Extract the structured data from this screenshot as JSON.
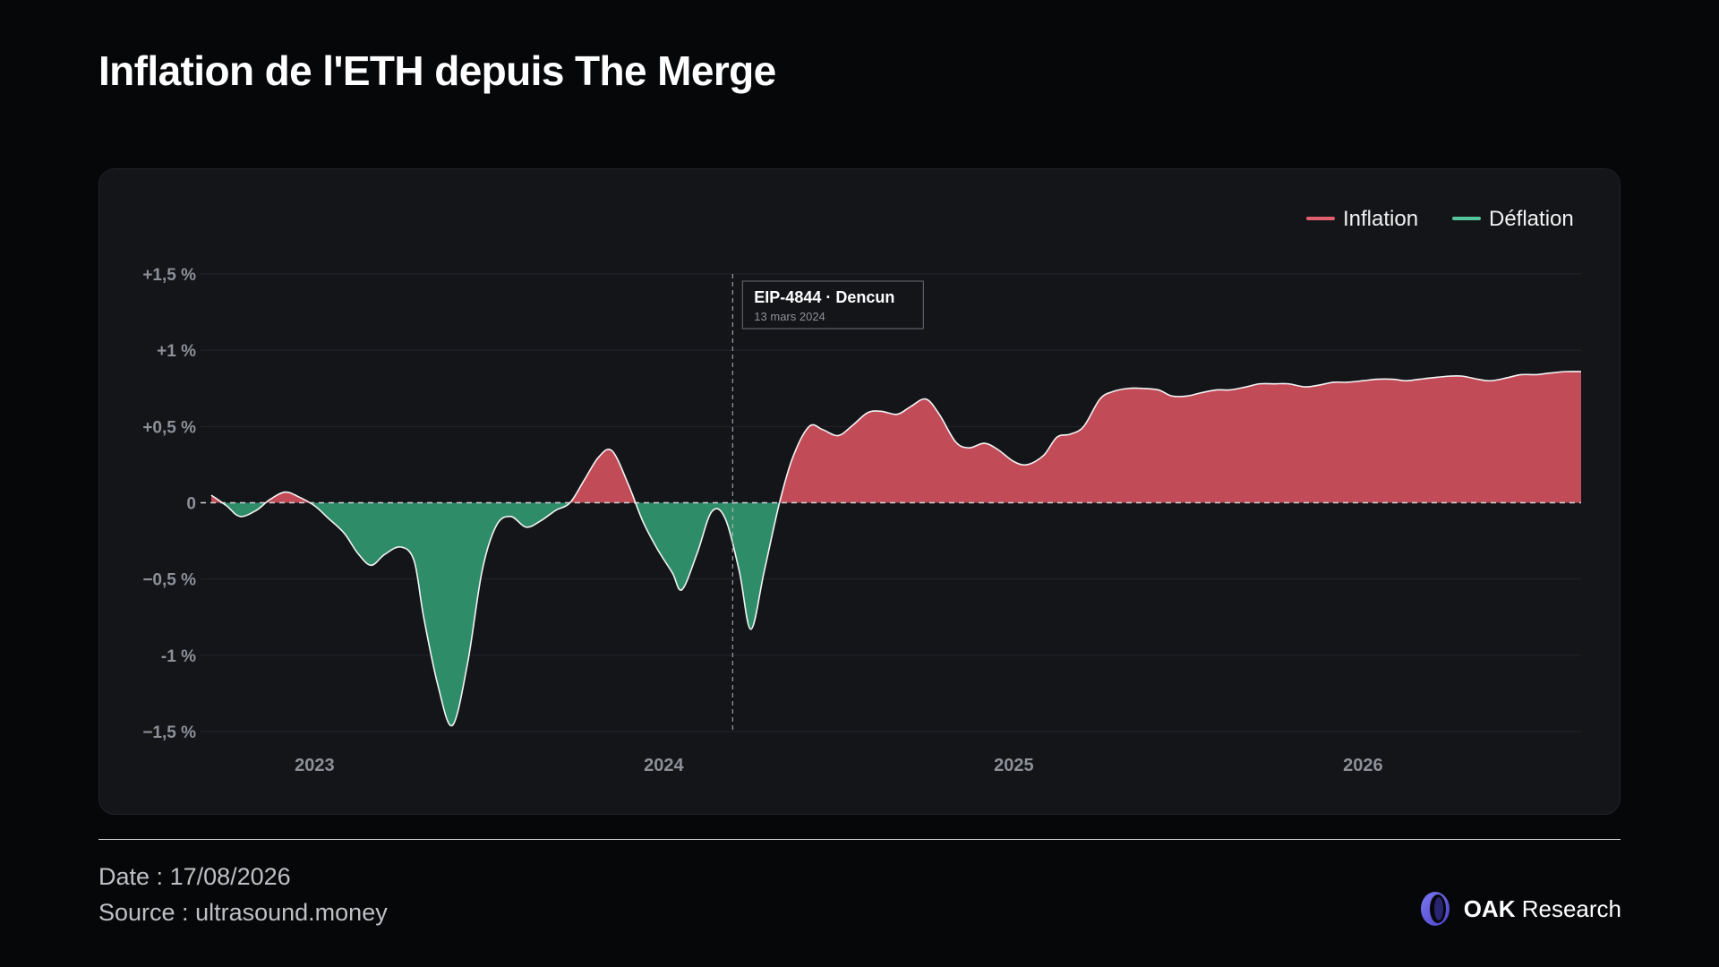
{
  "page": {
    "title": "Inflation de l'ETH depuis The Merge",
    "footer": {
      "date_label": "Date :",
      "date_value": "17/08/2026",
      "source_label": "Source :",
      "source_value": "ultrasound.money"
    },
    "brand": {
      "bold": "OAK",
      "light": "Research"
    }
  },
  "colors": {
    "inflation": "#e0606e",
    "deflation": "#55c49a",
    "inflation_area": "#c24b58",
    "deflation_area": "#2e8c69"
  },
  "chart_data": {
    "type": "area",
    "title": "Inflation de l'ETH depuis The Merge",
    "legend": {
      "placement": "top-right",
      "entries": [
        "Inflation",
        "Déflation"
      ]
    },
    "series": [
      {
        "name": "Inflation",
        "color": "#e0606e",
        "sign": "positive"
      },
      {
        "name": "Déflation",
        "color": "#55c49a",
        "sign": "negative"
      }
    ],
    "y_ticks": [
      {
        "value": 1.5,
        "label": "+1,5 %"
      },
      {
        "value": 1,
        "label": "+1 %"
      },
      {
        "value": 0.5,
        "label": "+0,5 %"
      },
      {
        "value": 0,
        "label": "0"
      },
      {
        "value": -0.5,
        "label": "−0,5 %"
      },
      {
        "value": -1,
        "label": "-1 %"
      },
      {
        "value": -1.5,
        "label": "−1,5 %"
      }
    ],
    "x_ticks": [
      {
        "value": "2023-01-01",
        "label": "2023"
      },
      {
        "value": "2024-01-01",
        "label": "2024"
      },
      {
        "value": "2025-01-01",
        "label": "2025"
      },
      {
        "value": "2026-01-01",
        "label": "2026"
      }
    ],
    "ylim": [
      -1.5,
      1.5
    ],
    "xlim": [
      "2022-09-15",
      "2026-08-17"
    ],
    "grid": true,
    "zero_line": "dashed",
    "annotation": {
      "date": "2024-03-13",
      "title": "EIP-4844 · Dencun",
      "subtitle": "13 mars 2024"
    },
    "points": [
      [
        "2022-09-15",
        0.05
      ],
      [
        "2022-10-01",
        -0.02
      ],
      [
        "2022-10-15",
        -0.09
      ],
      [
        "2022-11-01",
        -0.05
      ],
      [
        "2022-11-15",
        0.02
      ],
      [
        "2022-12-01",
        0.07
      ],
      [
        "2022-12-15",
        0.04
      ],
      [
        "2023-01-01",
        -0.02
      ],
      [
        "2023-01-15",
        -0.1
      ],
      [
        "2023-02-01",
        -0.2
      ],
      [
        "2023-02-15",
        -0.33
      ],
      [
        "2023-03-01",
        -0.41
      ],
      [
        "2023-03-15",
        -0.34
      ],
      [
        "2023-04-01",
        -0.29
      ],
      [
        "2023-04-15",
        -0.38
      ],
      [
        "2023-04-25",
        -0.75
      ],
      [
        "2023-05-10",
        -1.2
      ],
      [
        "2023-05-25",
        -1.46
      ],
      [
        "2023-06-10",
        -1.05
      ],
      [
        "2023-06-25",
        -0.45
      ],
      [
        "2023-07-10",
        -0.15
      ],
      [
        "2023-07-25",
        -0.09
      ],
      [
        "2023-08-10",
        -0.16
      ],
      [
        "2023-08-25",
        -0.12
      ],
      [
        "2023-09-10",
        -0.05
      ],
      [
        "2023-09-25",
        0.0
      ],
      [
        "2023-10-10",
        0.15
      ],
      [
        "2023-10-25",
        0.3
      ],
      [
        "2023-11-08",
        0.34
      ],
      [
        "2023-11-25",
        0.12
      ],
      [
        "2023-12-10",
        -0.12
      ],
      [
        "2023-12-25",
        -0.3
      ],
      [
        "2024-01-10",
        -0.46
      ],
      [
        "2024-01-20",
        -0.57
      ],
      [
        "2024-02-05",
        -0.33
      ],
      [
        "2024-02-20",
        -0.06
      ],
      [
        "2024-03-05",
        -0.1
      ],
      [
        "2024-03-20",
        -0.45
      ],
      [
        "2024-04-01",
        -0.83
      ],
      [
        "2024-04-15",
        -0.45
      ],
      [
        "2024-05-01",
        0.0
      ],
      [
        "2024-05-15",
        0.3
      ],
      [
        "2024-06-01",
        0.5
      ],
      [
        "2024-06-15",
        0.48
      ],
      [
        "2024-07-01",
        0.44
      ],
      [
        "2024-07-15",
        0.5
      ],
      [
        "2024-08-01",
        0.59
      ],
      [
        "2024-08-15",
        0.6
      ],
      [
        "2024-09-01",
        0.58
      ],
      [
        "2024-09-15",
        0.63
      ],
      [
        "2024-10-01",
        0.68
      ],
      [
        "2024-10-15",
        0.58
      ],
      [
        "2024-11-01",
        0.4
      ],
      [
        "2024-11-15",
        0.36
      ],
      [
        "2024-12-01",
        0.39
      ],
      [
        "2024-12-15",
        0.35
      ],
      [
        "2025-01-01",
        0.27
      ],
      [
        "2025-01-15",
        0.25
      ],
      [
        "2025-02-01",
        0.31
      ],
      [
        "2025-02-15",
        0.43
      ],
      [
        "2025-03-01",
        0.45
      ],
      [
        "2025-03-15",
        0.5
      ],
      [
        "2025-04-01",
        0.68
      ],
      [
        "2025-04-15",
        0.73
      ],
      [
        "2025-05-01",
        0.75
      ],
      [
        "2025-05-15",
        0.75
      ],
      [
        "2025-06-01",
        0.74
      ],
      [
        "2025-06-15",
        0.7
      ],
      [
        "2025-07-01",
        0.7
      ],
      [
        "2025-07-15",
        0.72
      ],
      [
        "2025-08-01",
        0.74
      ],
      [
        "2025-08-15",
        0.74
      ],
      [
        "2025-09-01",
        0.76
      ],
      [
        "2025-09-15",
        0.78
      ],
      [
        "2025-10-01",
        0.78
      ],
      [
        "2025-10-15",
        0.78
      ],
      [
        "2025-11-01",
        0.76
      ],
      [
        "2025-11-15",
        0.77
      ],
      [
        "2025-12-01",
        0.79
      ],
      [
        "2025-12-15",
        0.79
      ],
      [
        "2026-01-01",
        0.8
      ],
      [
        "2026-01-15",
        0.81
      ],
      [
        "2026-02-01",
        0.81
      ],
      [
        "2026-02-15",
        0.8
      ],
      [
        "2026-03-01",
        0.81
      ],
      [
        "2026-03-15",
        0.82
      ],
      [
        "2026-04-01",
        0.83
      ],
      [
        "2026-04-15",
        0.83
      ],
      [
        "2026-05-01",
        0.81
      ],
      [
        "2026-05-15",
        0.8
      ],
      [
        "2026-06-01",
        0.82
      ],
      [
        "2026-06-15",
        0.84
      ],
      [
        "2026-07-01",
        0.84
      ],
      [
        "2026-07-15",
        0.85
      ],
      [
        "2026-08-01",
        0.86
      ],
      [
        "2026-08-17",
        0.86
      ]
    ]
  }
}
